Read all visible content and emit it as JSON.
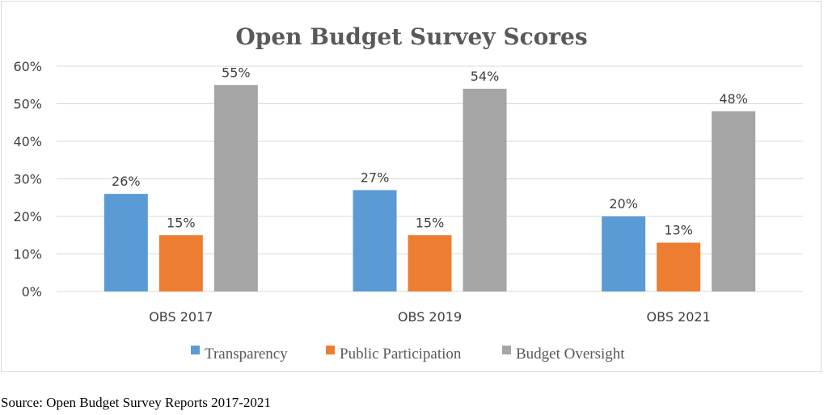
{
  "chart_data": {
    "type": "bar",
    "title": "Open Budget Survey Scores",
    "categories": [
      "OBS 2017",
      "OBS 2019",
      "OBS 2021"
    ],
    "series": [
      {
        "name": "Transparency",
        "values": [
          26,
          27,
          20
        ],
        "color": "#5b9bd5"
      },
      {
        "name": "Public Participation",
        "values": [
          15,
          15,
          13
        ],
        "color": "#ed7d31"
      },
      {
        "name": "Budget Oversight",
        "values": [
          55,
          54,
          48
        ],
        "color": "#a5a5a5"
      }
    ],
    "value_suffix": "%",
    "ylim": [
      0,
      60
    ],
    "yticks": [
      "0%",
      "10%",
      "20%",
      "30%",
      "40%",
      "50%",
      "60%"
    ],
    "xlabel": "",
    "ylabel": "",
    "grid": true,
    "legend_position": "bottom"
  },
  "source_note": "Source: Open Budget Survey Reports 2017-2021",
  "colors": {
    "gridline": "#d9d9d9",
    "frame": "#d9d9d9",
    "text": "#404040"
  }
}
